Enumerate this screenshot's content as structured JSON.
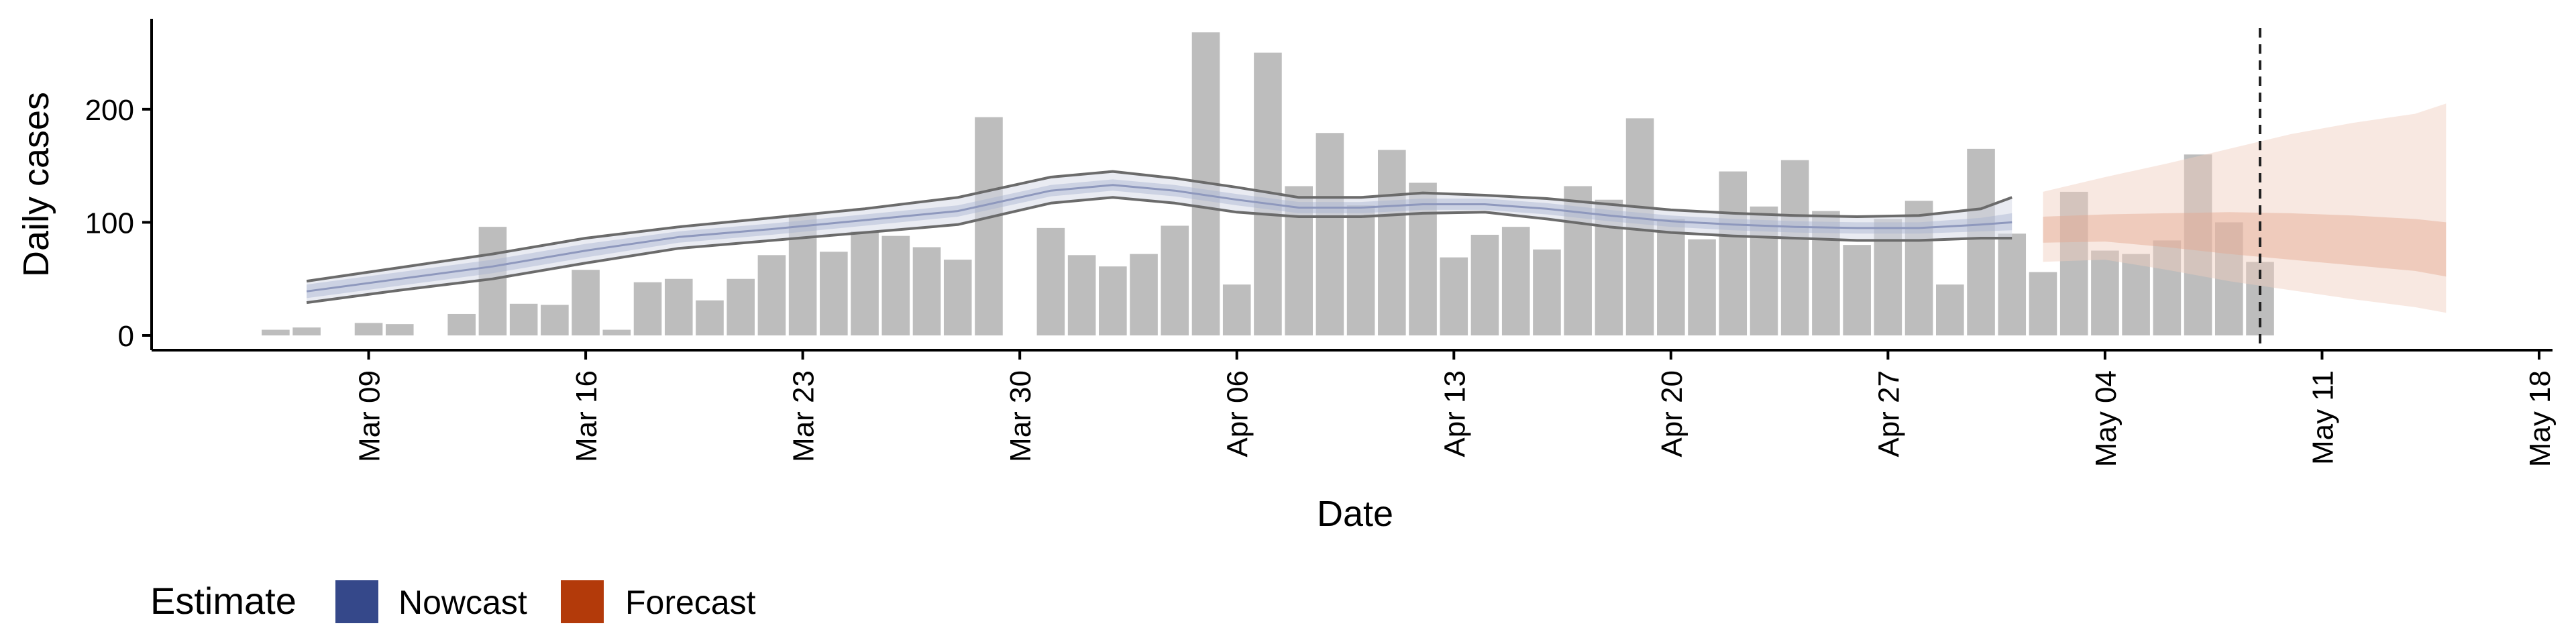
{
  "chart_data": {
    "type": "bar",
    "xlabel": "Date",
    "ylabel": "Daily cases",
    "ylim": [
      0,
      280
    ],
    "yticks": [
      0,
      100,
      200
    ],
    "xlim": [
      "2020-03-02",
      "2020-05-18"
    ],
    "xticks": [
      "2020-03-09",
      "2020-03-16",
      "2020-03-23",
      "2020-03-30",
      "2020-04-06",
      "2020-04-13",
      "2020-04-20",
      "2020-04-27",
      "2020-05-04",
      "2020-05-11",
      "2020-05-18"
    ],
    "xtick_labels": [
      "Mar 09",
      "Mar 16",
      "Mar 23",
      "Mar 30",
      "Apr 06",
      "Apr 13",
      "Apr 20",
      "Apr 27",
      "May 04",
      "May 11",
      "May 18"
    ],
    "bars": {
      "dates": [
        "2020-03-06",
        "2020-03-07",
        "2020-03-08",
        "2020-03-09",
        "2020-03-10",
        "2020-03-11",
        "2020-03-12",
        "2020-03-13",
        "2020-03-14",
        "2020-03-15",
        "2020-03-16",
        "2020-03-17",
        "2020-03-18",
        "2020-03-19",
        "2020-03-20",
        "2020-03-21",
        "2020-03-22",
        "2020-03-23",
        "2020-03-24",
        "2020-03-25",
        "2020-03-26",
        "2020-03-27",
        "2020-03-28",
        "2020-03-29",
        "2020-03-30",
        "2020-03-31",
        "2020-04-01",
        "2020-04-02",
        "2020-04-03",
        "2020-04-04",
        "2020-04-05",
        "2020-04-06",
        "2020-04-07",
        "2020-04-08",
        "2020-04-09",
        "2020-04-10",
        "2020-04-11",
        "2020-04-12",
        "2020-04-13",
        "2020-04-14",
        "2020-04-15",
        "2020-04-16",
        "2020-04-17",
        "2020-04-18",
        "2020-04-19",
        "2020-04-20",
        "2020-04-21",
        "2020-04-22",
        "2020-04-23",
        "2020-04-24",
        "2020-04-25",
        "2020-04-26",
        "2020-04-27",
        "2020-04-28",
        "2020-04-29",
        "2020-04-30",
        "2020-05-01",
        "2020-05-02",
        "2020-05-03",
        "2020-05-04",
        "2020-05-05",
        "2020-05-06",
        "2020-05-07",
        "2020-05-08",
        "2020-05-09"
      ],
      "values": [
        5,
        7,
        null,
        11,
        10,
        null,
        19,
        96,
        28,
        27,
        58,
        5,
        47,
        50,
        31,
        50,
        71,
        107,
        74,
        92,
        88,
        78,
        67,
        193,
        0,
        95,
        71,
        61,
        72,
        97,
        268,
        45,
        250,
        132,
        179,
        115,
        164,
        135,
        69,
        89,
        96,
        76,
        132,
        120,
        192,
        103,
        85,
        145,
        114,
        155,
        110,
        80,
        103,
        119,
        45,
        165,
        90,
        56,
        127,
        75,
        72,
        84,
        160,
        100,
        65
      ],
      "color": "#bdbdbd"
    },
    "nowcast": {
      "name": "Nowcast",
      "color": "#35488a",
      "dates": [
        "2020-03-07",
        "2020-03-10",
        "2020-03-13",
        "2020-03-16",
        "2020-03-19",
        "2020-03-22",
        "2020-03-25",
        "2020-03-28",
        "2020-03-31",
        "2020-04-02",
        "2020-04-04",
        "2020-04-06",
        "2020-04-08",
        "2020-04-10",
        "2020-04-12",
        "2020-04-14",
        "2020-04-16",
        "2020-04-18",
        "2020-04-20",
        "2020-04-22",
        "2020-04-24",
        "2020-04-26",
        "2020-04-28",
        "2020-04-30",
        "2020-05-01"
      ],
      "median": [
        39,
        50,
        61,
        75,
        87,
        94,
        102,
        110,
        128,
        133,
        128,
        120,
        113,
        113,
        116,
        116,
        112,
        106,
        101,
        98,
        96,
        95,
        95,
        98,
        100
      ],
      "inner_lower": [
        33,
        44,
        55,
        69,
        82,
        89,
        97,
        105,
        123,
        128,
        123,
        115,
        108,
        108,
        111,
        111,
        107,
        101,
        96,
        93,
        91,
        90,
        90,
        92,
        93
      ],
      "inner_upper": [
        45,
        56,
        67,
        81,
        92,
        99,
        107,
        115,
        133,
        138,
        133,
        125,
        118,
        118,
        121,
        121,
        117,
        111,
        106,
        103,
        101,
        100,
        100,
        104,
        108
      ],
      "outer_lower": [
        29,
        40,
        50,
        64,
        77,
        84,
        91,
        98,
        117,
        122,
        117,
        109,
        105,
        105,
        108,
        109,
        103,
        96,
        91,
        88,
        86,
        84,
        84,
        86,
        86
      ],
      "outer_upper": [
        48,
        60,
        72,
        86,
        96,
        104,
        112,
        122,
        140,
        145,
        139,
        131,
        122,
        122,
        126,
        124,
        121,
        116,
        111,
        108,
        106,
        105,
        106,
        112,
        122
      ]
    },
    "forecast": {
      "name": "Forecast",
      "color": "#b33a0a",
      "dates": [
        "2020-05-02",
        "2020-05-04",
        "2020-05-06",
        "2020-05-08",
        "2020-05-10",
        "2020-05-12",
        "2020-05-14",
        "2020-05-15"
      ],
      "inner_lower": [
        82,
        83,
        78,
        72,
        67,
        62,
        57,
        52
      ],
      "inner_upper": [
        105,
        107,
        108,
        109,
        108,
        106,
        103,
        100
      ],
      "outer_lower": [
        65,
        67,
        58,
        48,
        40,
        32,
        25,
        20
      ],
      "outer_upper": [
        127,
        140,
        152,
        165,
        178,
        188,
        196,
        205
      ]
    },
    "vline": {
      "date": "2020-05-09",
      "style": "dashed"
    },
    "legend": {
      "title": "Estimate",
      "placement": "bottom-left",
      "entries": [
        {
          "label": "Nowcast",
          "color": "#35488a"
        },
        {
          "label": "Forecast",
          "color": "#b33a0a"
        }
      ]
    },
    "grid": false
  }
}
